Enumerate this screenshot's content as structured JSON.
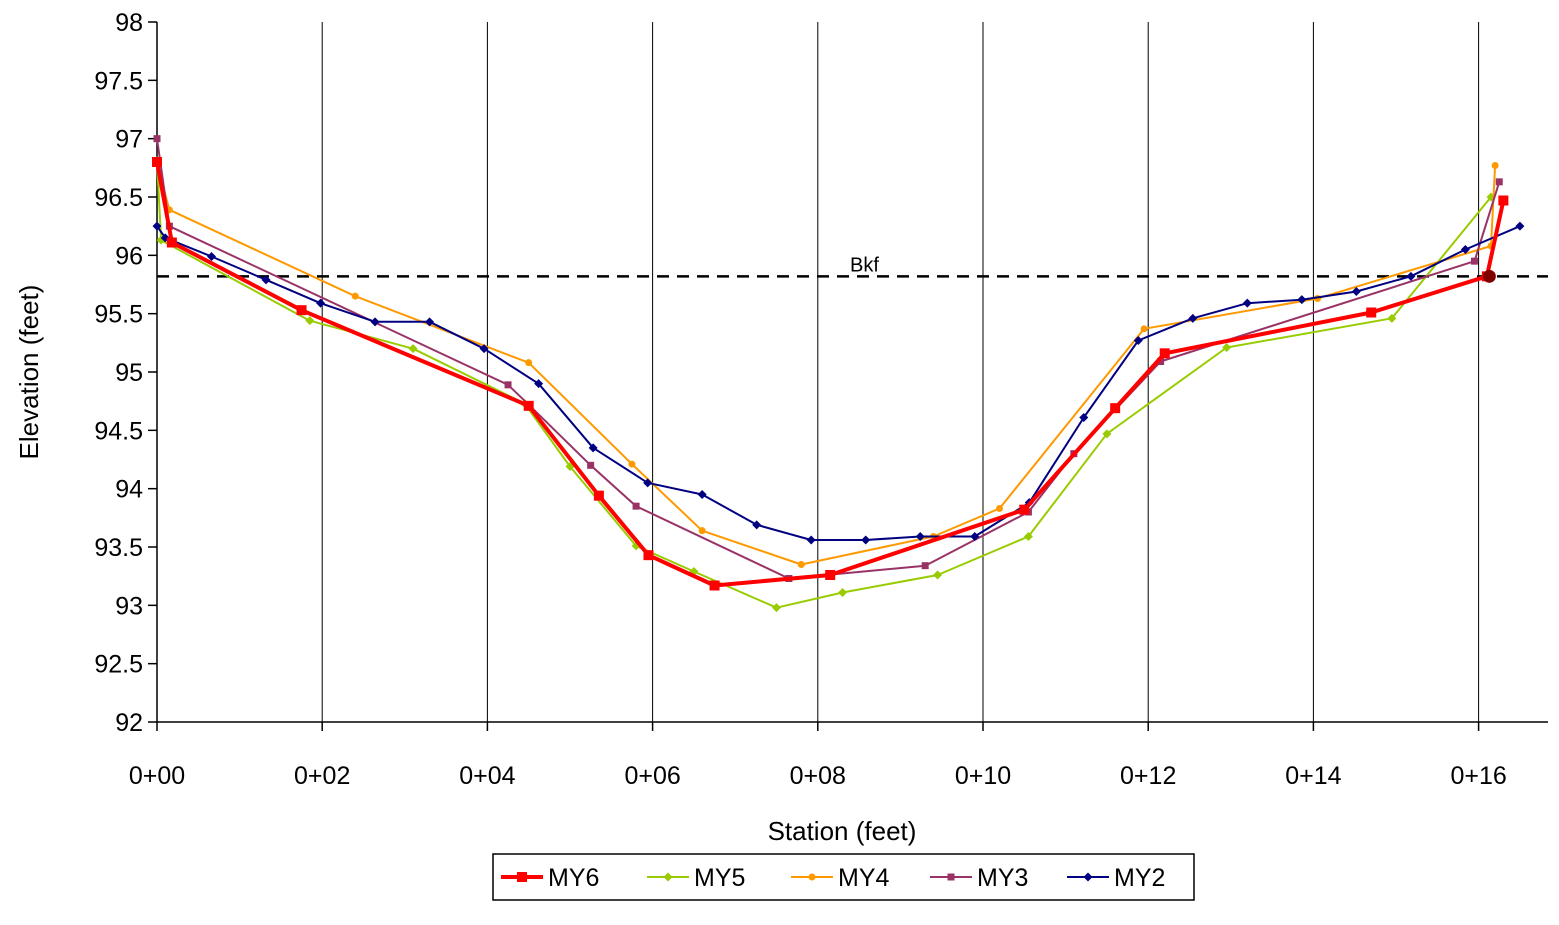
{
  "chart_data": {
    "type": "line",
    "title": "",
    "xlabel": "Station (feet)",
    "ylabel": "Elevation (feet)",
    "xlim": [
      0,
      16.8
    ],
    "ylim": [
      92,
      98
    ],
    "x_ticks": [
      {
        "value": 0,
        "label": "0+00"
      },
      {
        "value": 2,
        "label": "0+02"
      },
      {
        "value": 4,
        "label": "0+04"
      },
      {
        "value": 6,
        "label": "0+06"
      },
      {
        "value": 8,
        "label": "0+08"
      },
      {
        "value": 10,
        "label": "0+10"
      },
      {
        "value": 12,
        "label": "0+12"
      },
      {
        "value": 14,
        "label": "0+14"
      },
      {
        "value": 16,
        "label": "0+16"
      }
    ],
    "y_ticks": [
      {
        "value": 92,
        "label": "92"
      },
      {
        "value": 92.5,
        "label": "92.5"
      },
      {
        "value": 93,
        "label": "93"
      },
      {
        "value": 93.5,
        "label": "93.5"
      },
      {
        "value": 94,
        "label": "94"
      },
      {
        "value": 94.5,
        "label": "94.5"
      },
      {
        "value": 95,
        "label": "95"
      },
      {
        "value": 95.5,
        "label": "95.5"
      },
      {
        "value": 96,
        "label": "96"
      },
      {
        "value": 96.5,
        "label": "96.5"
      },
      {
        "value": 97,
        "label": "97"
      },
      {
        "value": 97.5,
        "label": "97.5"
      },
      {
        "value": 98,
        "label": "98"
      }
    ],
    "grid": {
      "vertical": true,
      "horizontal": false
    },
    "legend_position": "bottom",
    "bankfull": {
      "label": "Bkf",
      "y": 95.82,
      "marker_x": 16.13,
      "marker_color": "#800000"
    },
    "series": [
      {
        "name": "MY2",
        "color": "#000080",
        "marker": "diamond",
        "width": 2,
        "points": [
          [
            0,
            96.25
          ],
          [
            0.1,
            96.15
          ],
          [
            0.66,
            95.99
          ],
          [
            1.32,
            95.79
          ],
          [
            1.98,
            95.59
          ],
          [
            2.64,
            95.43
          ],
          [
            3.3,
            95.43
          ],
          [
            3.96,
            95.2
          ],
          [
            4.62,
            94.9
          ],
          [
            5.28,
            94.35
          ],
          [
            5.94,
            94.05
          ],
          [
            6.6,
            93.95
          ],
          [
            7.26,
            93.69
          ],
          [
            7.92,
            93.56
          ],
          [
            8.58,
            93.56
          ],
          [
            9.24,
            93.59
          ],
          [
            9.9,
            93.59
          ],
          [
            10.56,
            93.88
          ],
          [
            11.22,
            94.61
          ],
          [
            11.88,
            95.27
          ],
          [
            12.54,
            95.46
          ],
          [
            13.2,
            95.59
          ],
          [
            13.86,
            95.62
          ],
          [
            14.52,
            95.69
          ],
          [
            15.18,
            95.82
          ],
          [
            15.84,
            96.05
          ],
          [
            16.5,
            96.25
          ]
        ]
      },
      {
        "name": "MY3",
        "color": "#993366",
        "marker": "square",
        "width": 2,
        "points": [
          [
            0,
            97.0
          ],
          [
            0.15,
            96.25
          ],
          [
            4.25,
            94.89
          ],
          [
            4.5,
            94.72
          ],
          [
            5.25,
            94.2
          ],
          [
            5.8,
            93.85
          ],
          [
            7.65,
            93.23
          ],
          [
            9.3,
            93.34
          ],
          [
            10.55,
            93.8
          ],
          [
            11.1,
            94.3
          ],
          [
            12.15,
            95.09
          ],
          [
            15.95,
            95.95
          ],
          [
            16.25,
            96.63
          ]
        ]
      },
      {
        "name": "MY4",
        "color": "#FF9900",
        "marker": "circle",
        "width": 2,
        "points": [
          [
            0,
            96.79
          ],
          [
            0.15,
            96.39
          ],
          [
            2.4,
            95.65
          ],
          [
            4.5,
            95.08
          ],
          [
            5.75,
            94.21
          ],
          [
            6.6,
            93.64
          ],
          [
            7.8,
            93.35
          ],
          [
            9.4,
            93.59
          ],
          [
            10.2,
            93.83
          ],
          [
            11.95,
            95.37
          ],
          [
            14.05,
            95.63
          ],
          [
            16.15,
            96.08
          ],
          [
            16.2,
            96.77
          ]
        ]
      },
      {
        "name": "MY5",
        "color": "#99CC00",
        "marker": "diamond",
        "width": 2,
        "points": [
          [
            0,
            96.81
          ],
          [
            0.05,
            96.13
          ],
          [
            1.85,
            95.44
          ],
          [
            3.1,
            95.2
          ],
          [
            4.45,
            94.73
          ],
          [
            5.0,
            94.19
          ],
          [
            5.8,
            93.51
          ],
          [
            6.5,
            93.29
          ],
          [
            7.5,
            92.98
          ],
          [
            8.3,
            93.11
          ],
          [
            9.45,
            93.26
          ],
          [
            10.55,
            93.59
          ],
          [
            11.5,
            94.47
          ],
          [
            12.95,
            95.21
          ],
          [
            14.95,
            95.46
          ],
          [
            16.15,
            96.5
          ]
        ]
      },
      {
        "name": "MY6",
        "color": "#FF0000",
        "marker": "square",
        "width": 4,
        "points": [
          [
            0,
            96.8
          ],
          [
            0.18,
            96.11
          ],
          [
            1.75,
            95.53
          ],
          [
            4.5,
            94.71
          ],
          [
            5.35,
            93.94
          ],
          [
            5.95,
            93.43
          ],
          [
            6.75,
            93.17
          ],
          [
            8.15,
            93.26
          ],
          [
            10.5,
            93.82
          ],
          [
            11.6,
            94.69
          ],
          [
            12.2,
            95.16
          ],
          [
            14.7,
            95.51
          ],
          [
            16.1,
            95.82
          ],
          [
            16.3,
            96.47
          ]
        ]
      }
    ],
    "legend_order": [
      "MY6",
      "MY5",
      "MY4",
      "MY3",
      "MY2"
    ]
  }
}
